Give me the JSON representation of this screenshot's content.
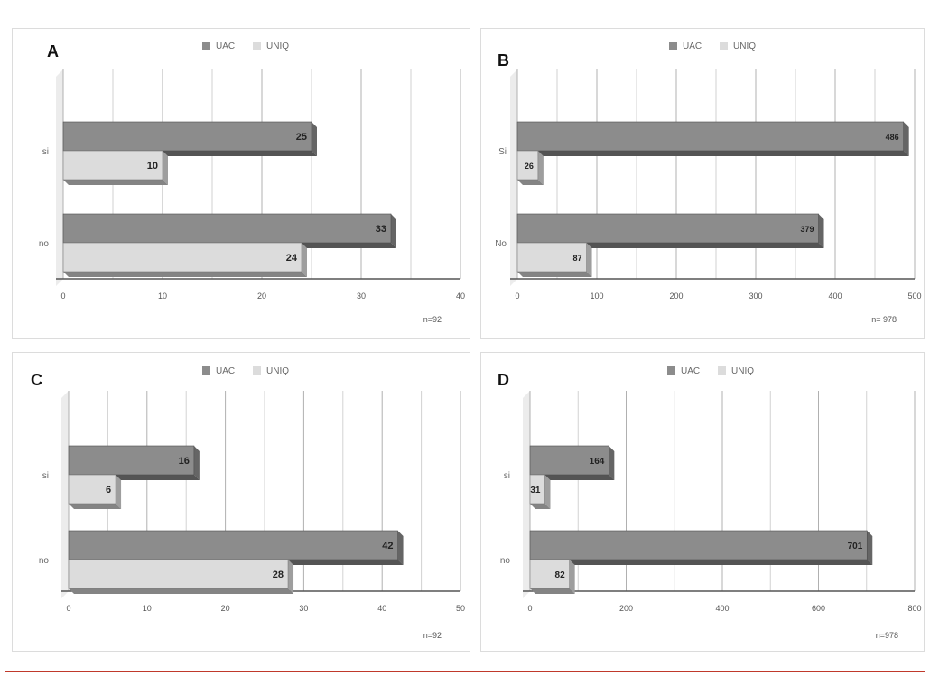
{
  "colors": {
    "uac": "#8c8c8c",
    "uniq": "#dcdcdc",
    "grid": "#b0b0b0",
    "axis": "#555555"
  },
  "chart_data": [
    {
      "panel_letter": "A",
      "type": "bar",
      "orientation": "horizontal",
      "categories": [
        "si",
        "no"
      ],
      "series": [
        {
          "name": "UAC",
          "values": [
            25,
            33
          ]
        },
        {
          "name": "UNIQ",
          "values": [
            10,
            24
          ]
        }
      ],
      "xlim": [
        0,
        40
      ],
      "x_ticks": [
        "0",
        "10",
        "20",
        "30",
        "40"
      ],
      "note": "n=92",
      "legend": "top",
      "grid": true
    },
    {
      "panel_letter": "B",
      "type": "bar",
      "orientation": "horizontal",
      "categories": [
        "Si",
        "No"
      ],
      "series": [
        {
          "name": "UAC",
          "values": [
            486,
            379
          ]
        },
        {
          "name": "UNIQ",
          "values": [
            26,
            87
          ]
        }
      ],
      "xlim": [
        0,
        500
      ],
      "x_ticks": [
        "0",
        "100",
        "200",
        "300",
        "400",
        "500"
      ],
      "note": "n= 978",
      "legend": "top",
      "grid": true
    },
    {
      "panel_letter": "C",
      "type": "bar",
      "orientation": "horizontal",
      "categories": [
        "si",
        "no"
      ],
      "series": [
        {
          "name": "UAC",
          "values": [
            16,
            42
          ]
        },
        {
          "name": "UNIQ",
          "values": [
            6,
            28
          ]
        }
      ],
      "xlim": [
        0,
        50
      ],
      "x_ticks": [
        "0",
        "10",
        "20",
        "30",
        "40",
        "50"
      ],
      "note": "n=92",
      "legend": "top",
      "grid": true
    },
    {
      "panel_letter": "D",
      "type": "bar",
      "orientation": "horizontal",
      "categories": [
        "si",
        "no"
      ],
      "series": [
        {
          "name": "UAC",
          "values": [
            164,
            701
          ]
        },
        {
          "name": "UNIQ",
          "values": [
            31,
            82
          ]
        }
      ],
      "xlim": [
        0,
        800
      ],
      "x_ticks": [
        "0",
        "200",
        "400",
        "600",
        "800"
      ],
      "note": "n=978",
      "legend": "top",
      "grid": true
    }
  ]
}
